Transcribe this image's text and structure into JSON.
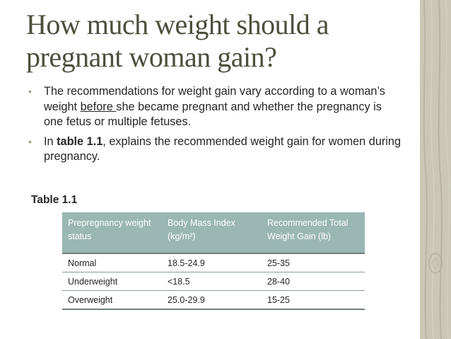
{
  "slide": {
    "title": "How much weight should a pregnant woman gain?",
    "bullet_char": "•",
    "bullet1": {
      "text_before": "The recommendations for weight gain vary according to a woman’s weight ",
      "underlined": "before ",
      "text_after": " she became pregnant and whether the pregnancy is one fetus or multiple fetuses."
    },
    "bullet2": {
      "text_before": " In ",
      "bold": "table 1.1",
      "text_after": ", explains the recommended weight gain for women during pregnancy."
    }
  },
  "table": {
    "caption": "Table 1.1",
    "headers": [
      "Prepregnancy weight status",
      "Body Mass Index (kg/m²)",
      "Recommended Total Weight Gain (lb)"
    ],
    "rows": [
      [
        "Normal",
        "18.5-24.9",
        "25-35"
      ],
      [
        "Underweight",
        "<18.5",
        "28-40"
      ],
      [
        "Overweight",
        "25.0-29.9",
        "15-25"
      ]
    ]
  },
  "colors": {
    "title": "#4d4e3c",
    "header_fill": "#9ab7b3",
    "bullet": "#9aa183",
    "side_band": "#c9c7b3"
  }
}
